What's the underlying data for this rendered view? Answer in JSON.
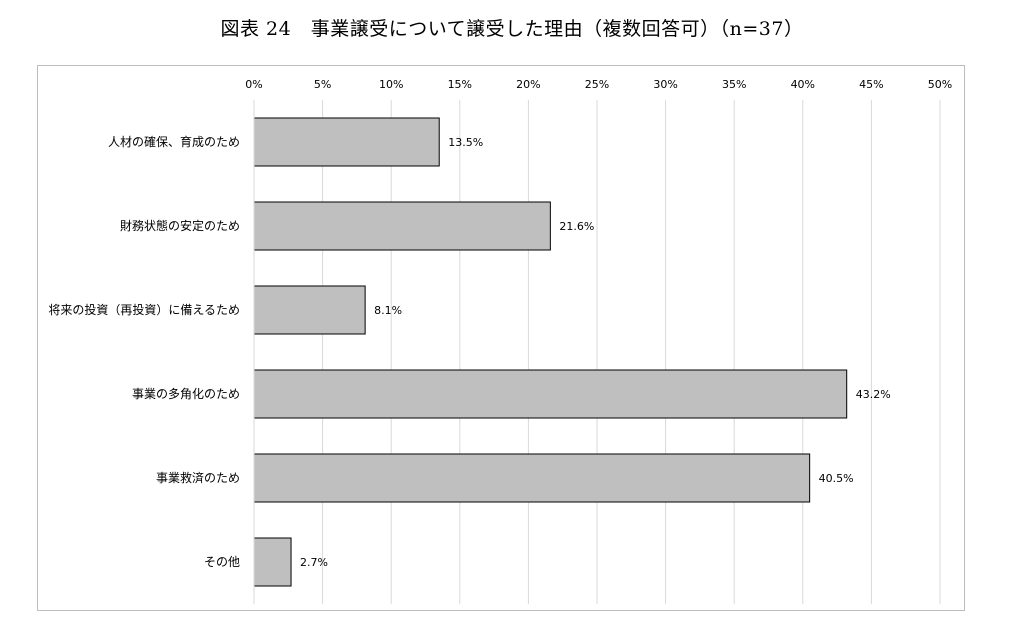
{
  "title": "図表 24　事業譲受について譲受した理由（複数回答可）（n=37）",
  "chart_data": {
    "type": "bar",
    "orientation": "horizontal",
    "title": "図表 24　事業譲受について譲受した理由（複数回答可）（n=37）",
    "categories": [
      "人材の確保、育成のため",
      "財務状態の安定のため",
      "将来の投資（再投資）に備えるため",
      "事業の多角化のため",
      "事業救済のため",
      "その他"
    ],
    "values": [
      13.5,
      21.6,
      8.1,
      43.2,
      40.5,
      2.7
    ],
    "value_labels": [
      "13.5%",
      "21.6%",
      "8.1%",
      "43.2%",
      "40.5%",
      "2.7%"
    ],
    "xlim": [
      0,
      50
    ],
    "xticks": [
      0,
      5,
      10,
      15,
      20,
      25,
      30,
      35,
      40,
      45,
      50
    ],
    "xtick_labels": [
      "0%",
      "5%",
      "10%",
      "15%",
      "20%",
      "25%",
      "30%",
      "35%",
      "40%",
      "45%",
      "50%"
    ],
    "tick_position": "top",
    "grid": true,
    "legend": "none",
    "colors": {
      "bar_fill": "#bfbfbf",
      "bar_stroke": "#000000",
      "grid": "#d9d9d9",
      "frame": "#bdbdbd"
    }
  }
}
